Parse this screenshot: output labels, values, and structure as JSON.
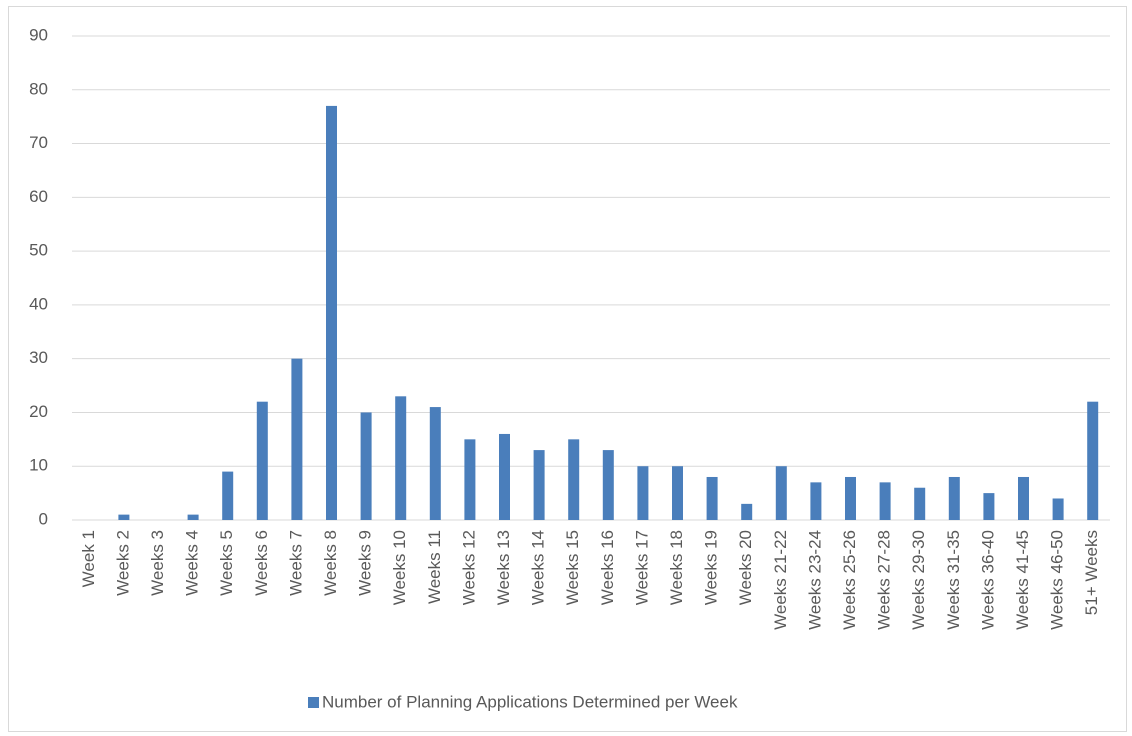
{
  "chart_data": {
    "type": "bar",
    "categories": [
      "Week 1",
      "Weeks 2",
      "Weeks 3",
      "Weeks 4",
      "Weeks 5",
      "Weeks 6",
      "Weeks 7",
      "Weeks 8",
      "Weeks 9",
      "Weeks 10",
      "Weeks 11",
      "Weeks 12",
      "Weeks 13",
      "Weeks 14",
      "Weeks 15",
      "Weeks 16",
      "Weeks 17",
      "Weeks 18",
      "Weeks 19",
      "Weeks 20",
      "Weeks 21-22",
      "Weeks 23-24",
      "Weeks 25-26",
      "Weeks 27-28",
      "Weeks 29-30",
      "Weeks 31-35",
      "Weeks 36-40",
      "Weeks 41-45",
      "Weeks 46-50",
      "51+ Weeks"
    ],
    "series": [
      {
        "name": "Number of Planning Applications Determined per Week",
        "color": "#4a7ebb",
        "values": [
          0,
          1,
          0,
          1,
          9,
          22,
          30,
          77,
          20,
          23,
          21,
          15,
          16,
          13,
          15,
          13,
          10,
          10,
          8,
          3,
          10,
          7,
          8,
          7,
          6,
          8,
          5,
          8,
          4,
          22
        ]
      }
    ],
    "ylim": [
      0,
      90
    ],
    "yticks": [
      0,
      10,
      20,
      30,
      40,
      50,
      60,
      70,
      80,
      90
    ],
    "grid": true,
    "legend": "bottom"
  }
}
